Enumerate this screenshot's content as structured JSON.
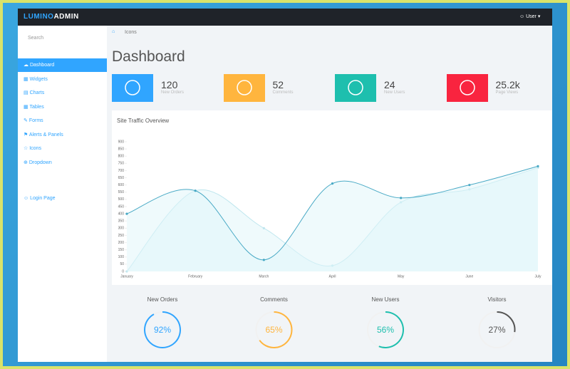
{
  "header": {
    "logo_a": "LUMINO",
    "logo_b": "ADMIN",
    "user": "User"
  },
  "sidebar": {
    "search": "Search",
    "menu": [
      "Dashboard",
      "Widgets",
      "Charts",
      "Tables",
      "Forms",
      "Alerts & Panels",
      "Icons",
      "Dropdown"
    ],
    "login": "Login Page"
  },
  "breadcrumb": "Icons",
  "page_title": "Dashboard",
  "stats": [
    {
      "value": "120",
      "label": "New Orders",
      "color": "#30a5ff"
    },
    {
      "value": "52",
      "label": "Comments",
      "color": "#ffb53e"
    },
    {
      "value": "24",
      "label": "New Users",
      "color": "#1ebfae"
    },
    {
      "value": "25.2k",
      "label": "Page Views",
      "color": "#f9243f"
    }
  ],
  "chart_data": {
    "type": "line",
    "title": "Site Traffic Overview",
    "categories": [
      "January",
      "February",
      "March",
      "April",
      "May",
      "June",
      "July"
    ],
    "series": [
      {
        "color": "#48a9c5",
        "values": [
          400,
          560,
          80,
          610,
          510,
          600,
          730
        ]
      },
      {
        "color": "#bfe6ee",
        "values": [
          0,
          560,
          300,
          40,
          480,
          570,
          720
        ]
      }
    ],
    "ylim": [
      0,
      900
    ],
    "yticks": [
      0,
      50,
      100,
      150,
      200,
      250,
      300,
      350,
      400,
      450,
      500,
      550,
      600,
      650,
      700,
      750,
      800,
      850,
      900
    ],
    "grid": false
  },
  "gauges": [
    {
      "label": "New Orders",
      "value": 92,
      "value_label": "92%",
      "color": "#30a5ff"
    },
    {
      "label": "Comments",
      "value": 65,
      "value_label": "65%",
      "color": "#ffb53e"
    },
    {
      "label": "New Users",
      "value": 56,
      "value_label": "56%",
      "color": "#1ebfae"
    },
    {
      "label": "Visitors",
      "value": 27,
      "value_label": "27%",
      "color": "#555555"
    }
  ]
}
